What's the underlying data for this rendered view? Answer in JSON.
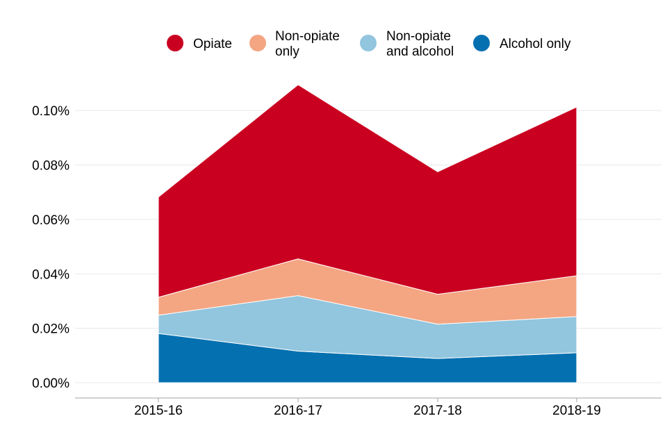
{
  "chart_data": {
    "type": "area",
    "stacked": true,
    "title": "",
    "xlabel": "",
    "ylabel": "",
    "categories": [
      "2015-16",
      "2016-17",
      "2017-18",
      "2018-19"
    ],
    "ylim": [
      0,
      0.11
    ],
    "yticks": [
      0.0,
      0.02,
      0.04,
      0.06,
      0.08,
      0.1
    ],
    "ytick_labels": [
      "0.00%",
      "0.02%",
      "0.04%",
      "0.06%",
      "0.08%",
      "0.10%"
    ],
    "grid": true,
    "legend_position": "top",
    "series": [
      {
        "name": "Alcohol only",
        "legend_lines": [
          "Alcohol only"
        ],
        "color": "#0570b0",
        "values": [
          0.0181,
          0.0116,
          0.0089,
          0.011
        ]
      },
      {
        "name": "Non-opiate and alcohol",
        "legend_lines": [
          "Non-opiate",
          "and alcohol"
        ],
        "color": "#92c5de",
        "values": [
          0.0067,
          0.0204,
          0.0126,
          0.0133
        ]
      },
      {
        "name": "Non-opiate only",
        "legend_lines": [
          "Non-opiate",
          "only"
        ],
        "color": "#f4a582",
        "values": [
          0.0066,
          0.0135,
          0.011,
          0.015
        ]
      },
      {
        "name": "Opiate",
        "legend_lines": [
          "Opiate"
        ],
        "color": "#ca0020",
        "values": [
          0.0368,
          0.064,
          0.045,
          0.062
        ]
      }
    ],
    "legend_order": [
      "Opiate",
      "Non-opiate only",
      "Non-opiate and alcohol",
      "Alcohol only"
    ]
  },
  "colors": {
    "grid": "#e8e8e8",
    "axis": "#a0a0a0",
    "text": "#000000"
  }
}
